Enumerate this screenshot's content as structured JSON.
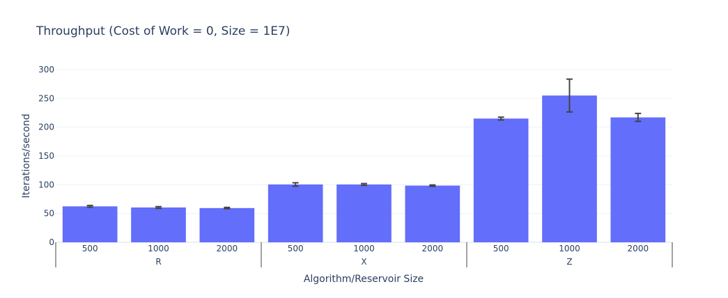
{
  "chart_data": {
    "type": "bar",
    "title": "Throughput (Cost of Work = 0, Size = 1E7)",
    "xlabel": "Algorithm/Reservoir Size",
    "ylabel": "Iterations/second",
    "ylim": [
      0,
      300
    ],
    "yticks": [
      0,
      50,
      100,
      150,
      200,
      250,
      300
    ],
    "grid": true,
    "bar_color": "#636efa",
    "error_color": "#444444",
    "groups": [
      {
        "name": "R",
        "categories": [
          "500",
          "1000",
          "2000"
        ],
        "values": [
          62.5,
          60.5,
          59.5
        ],
        "errors": [
          1.5,
          1.5,
          1.2
        ]
      },
      {
        "name": "X",
        "categories": [
          "500",
          "1000",
          "2000"
        ],
        "values": [
          100.5,
          100.5,
          98.5
        ],
        "errors": [
          3.0,
          1.5,
          1.2
        ]
      },
      {
        "name": "Z",
        "categories": [
          "500",
          "1000",
          "2000"
        ],
        "values": [
          215,
          255,
          217
        ],
        "errors": [
          2.5,
          28.5,
          7.0
        ]
      }
    ]
  }
}
